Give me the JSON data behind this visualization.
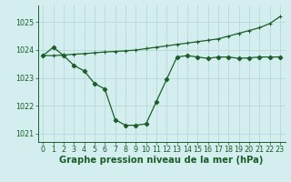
{
  "x": [
    0,
    1,
    2,
    3,
    4,
    5,
    6,
    7,
    8,
    9,
    10,
    11,
    12,
    13,
    14,
    15,
    16,
    17,
    18,
    19,
    20,
    21,
    22,
    23
  ],
  "line1": [
    1023.8,
    1024.1,
    1023.8,
    1023.45,
    1023.25,
    1022.8,
    1022.6,
    1021.5,
    1021.3,
    1021.3,
    1021.35,
    1022.15,
    1022.95,
    1023.75,
    1023.8,
    1023.75,
    1023.7,
    1023.75,
    1023.75,
    1023.7,
    1023.72,
    1023.75,
    1023.75,
    1023.75
  ],
  "line2": [
    1023.8,
    1023.8,
    1023.82,
    1023.85,
    1023.87,
    1023.9,
    1023.93,
    1023.95,
    1023.97,
    1024.0,
    1024.05,
    1024.1,
    1024.15,
    1024.2,
    1024.25,
    1024.3,
    1024.35,
    1024.4,
    1024.5,
    1024.6,
    1024.7,
    1024.8,
    1024.95,
    1025.2
  ],
  "ylim": [
    1020.7,
    1025.6
  ],
  "yticks": [
    1021,
    1022,
    1023,
    1024,
    1025
  ],
  "xticks": [
    0,
    1,
    2,
    3,
    4,
    5,
    6,
    7,
    8,
    9,
    10,
    11,
    12,
    13,
    14,
    15,
    16,
    17,
    18,
    19,
    20,
    21,
    22,
    23
  ],
  "xlabel": "Graphe pression niveau de la mer (hPa)",
  "line_color": "#1a5e28",
  "bg_color": "#d4eef0",
  "grid_color": "#b8d8d8",
  "tick_label_fontsize": 5.8,
  "xlabel_fontsize": 7.2
}
